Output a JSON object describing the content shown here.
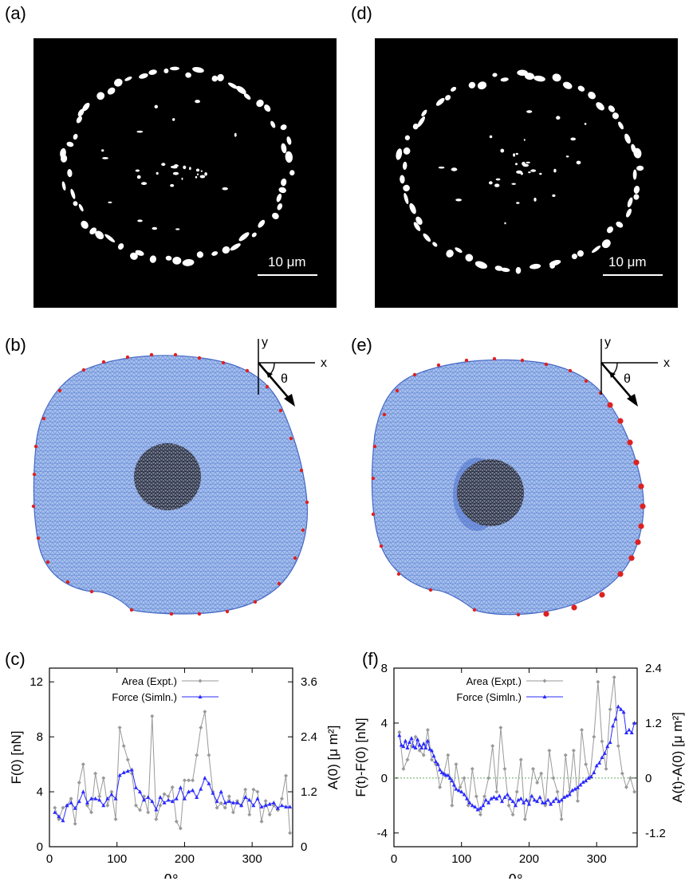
{
  "panels": {
    "a": {
      "label": "(a)",
      "scale_bar": "10 μm"
    },
    "b": {
      "label": "(b)",
      "axes": {
        "x": "x",
        "y": "y",
        "angle": "θ"
      }
    },
    "c": {
      "label": "(c)"
    },
    "d": {
      "label": "(d)",
      "scale_bar": "10 μm"
    },
    "e": {
      "label": "(e)",
      "axes": {
        "x": "x",
        "y": "y",
        "angle": "θ"
      }
    },
    "f": {
      "label": "(f)"
    }
  },
  "colors": {
    "area": "#999999",
    "force": "#2b2bff",
    "mesh": "#6f93d9",
    "nucleus": "#3a3f55",
    "adhesion": "#dd2222"
  },
  "chart_data": [
    {
      "type": "line",
      "panel": "c",
      "xlabel": "θ°",
      "ylabel_left": "F(0) [nN]",
      "ylabel_right": "A(0) [μ m²]",
      "xlim": [
        0,
        360
      ],
      "ylim_left": [
        0,
        13
      ],
      "ylim_right": [
        0,
        3.9
      ],
      "xticks": [
        0,
        100,
        200,
        300
      ],
      "yticks_left": [
        0,
        4,
        8,
        12
      ],
      "yticks_right": [
        0,
        1.2,
        2.4,
        3.6
      ],
      "yticks_right_labels": [
        "0",
        "1.2",
        "2.4",
        "3.6"
      ],
      "legend": "top-left",
      "series": [
        {
          "name": "Area (Expt.)",
          "axis": "right",
          "marker": "diamond",
          "x": [
            8,
            14,
            20,
            26,
            32,
            38,
            44,
            50,
            56,
            62,
            68,
            74,
            80,
            86,
            92,
            98,
            104,
            110,
            116,
            122,
            128,
            134,
            140,
            146,
            152,
            158,
            164,
            170,
            176,
            182,
            188,
            194,
            200,
            206,
            212,
            218,
            224,
            230,
            236,
            242,
            248,
            254,
            260,
            266,
            272,
            278,
            284,
            290,
            296,
            302,
            308,
            314,
            320,
            326,
            332,
            338,
            344,
            350,
            356
          ],
          "values": [
            0.85,
            0.6,
            0.85,
            0.9,
            1.05,
            0.5,
            1.4,
            1.8,
            0.9,
            0.75,
            1.6,
            1.1,
            1.5,
            0.9,
            1.2,
            0.6,
            2.6,
            2.2,
            1.9,
            1.6,
            0.9,
            0.8,
            1.1,
            0.75,
            2.85,
            0.6,
            0.9,
            1.15,
            1.1,
            1.3,
            0.55,
            0.4,
            1.45,
            1.45,
            1.45,
            2.0,
            2.6,
            2.95,
            2.0,
            1.2,
            0.85,
            0.95,
            0.85,
            1.1,
            0.75,
            1.0,
            0.9,
            1.25,
            0.7,
            1.25,
            1.2,
            0.55,
            1.0,
            0.7,
            0.9,
            0.8,
            1.05,
            1.55,
            0.3
          ]
        },
        {
          "name": "Force (Simln.)",
          "axis": "left",
          "marker": "triangle",
          "x": [
            8,
            14,
            20,
            26,
            32,
            38,
            44,
            50,
            56,
            62,
            68,
            74,
            80,
            86,
            92,
            98,
            104,
            110,
            116,
            122,
            128,
            134,
            140,
            146,
            152,
            158,
            164,
            170,
            176,
            182,
            188,
            194,
            200,
            206,
            212,
            218,
            224,
            230,
            236,
            242,
            248,
            254,
            260,
            266,
            272,
            278,
            284,
            290,
            296,
            302,
            308,
            314,
            320,
            326,
            332,
            338,
            344,
            350,
            356
          ],
          "values": [
            2.5,
            2.2,
            1.9,
            3.0,
            3.2,
            2.8,
            3.3,
            4.0,
            3.2,
            3.5,
            3.5,
            3.4,
            3.0,
            3.5,
            3.8,
            3.5,
            5.2,
            5.4,
            5.5,
            5.6,
            4.3,
            4.0,
            3.4,
            3.6,
            3.3,
            2.7,
            3.6,
            3.2,
            3.4,
            3.3,
            3.5,
            4.3,
            3.5,
            4.0,
            4.1,
            3.6,
            4.2,
            5.0,
            4.6,
            3.9,
            3.3,
            4.0,
            3.2,
            3.3,
            3.2,
            3.2,
            3.0,
            3.6,
            3.4,
            3.0,
            3.5,
            2.9,
            3.0,
            3.1,
            3.2,
            2.8,
            3.0,
            2.9,
            2.9
          ]
        }
      ]
    },
    {
      "type": "line",
      "panel": "f",
      "xlabel": "θ°",
      "ylabel_left": "F(t)-F(0) [nN]",
      "ylabel_right": "A(t)-A(0) [μ m²]",
      "xlim": [
        0,
        360
      ],
      "ylim_left": [
        -5,
        8
      ],
      "ylim_right": [
        -1.5,
        2.4
      ],
      "xticks": [
        0,
        100,
        200,
        300
      ],
      "yticks_left": [
        -4,
        0,
        4,
        8
      ],
      "yticks_right": [
        -1.2,
        0,
        1.2,
        2.4
      ],
      "yticks_right_labels": [
        "-1.2",
        "0",
        "1.2",
        "2.4"
      ],
      "zero_line": true,
      "legend": "top-left",
      "series": [
        {
          "name": "Area (Expt.)",
          "axis": "right",
          "marker": "diamond",
          "x": [
            8,
            14,
            20,
            26,
            32,
            38,
            44,
            50,
            56,
            62,
            68,
            74,
            80,
            86,
            92,
            98,
            104,
            110,
            116,
            122,
            128,
            134,
            140,
            146,
            152,
            158,
            164,
            170,
            176,
            182,
            188,
            194,
            200,
            206,
            212,
            218,
            224,
            230,
            236,
            242,
            248,
            254,
            260,
            266,
            272,
            278,
            284,
            290,
            296,
            302,
            308,
            314,
            320,
            326,
            332,
            338,
            344,
            350,
            356
          ],
          "values": [
            1.0,
            0.2,
            0.4,
            0.7,
            0.9,
            0.6,
            0.5,
            1.05,
            0.4,
            0.3,
            -0.2,
            0.1,
            0.5,
            -0.6,
            0.3,
            -0.2,
            0.0,
            -0.6,
            0.2,
            -0.4,
            -0.8,
            -0.4,
            0.0,
            0.7,
            -0.3,
            1.1,
            0.2,
            -0.6,
            -0.8,
            -0.3,
            0.4,
            -0.9,
            -0.5,
            0.2,
            -0.1,
            0.1,
            -0.6,
            0.6,
            0.0,
            -0.3,
            -0.9,
            0.5,
            -0.3,
            0.6,
            -0.5,
            1.05,
            0.3,
            0.0,
            0.9,
            2.1,
            0.8,
            0.2,
            1.5,
            2.2,
            0.7,
            0.1,
            -0.2,
            0.0,
            -0.3
          ]
        },
        {
          "name": "Force (Simln.)",
          "axis": "left",
          "marker": "triangle",
          "x": [
            8,
            11,
            14,
            17,
            20,
            23,
            26,
            29,
            32,
            35,
            38,
            41,
            44,
            47,
            50,
            53,
            56,
            59,
            62,
            65,
            68,
            71,
            74,
            77,
            80,
            83,
            86,
            89,
            92,
            96,
            100,
            104,
            108,
            112,
            116,
            120,
            124,
            128,
            132,
            136,
            140,
            144,
            148,
            152,
            156,
            160,
            164,
            168,
            172,
            176,
            180,
            184,
            188,
            192,
            196,
            200,
            204,
            208,
            212,
            216,
            220,
            224,
            228,
            232,
            236,
            240,
            244,
            248,
            252,
            256,
            260,
            264,
            268,
            272,
            276,
            280,
            284,
            288,
            292,
            296,
            300,
            304,
            308,
            312,
            316,
            320,
            324,
            328,
            332,
            336,
            340,
            344,
            348,
            352,
            356
          ],
          "values": [
            3.1,
            2.4,
            2.3,
            2.7,
            2.2,
            2.6,
            2.9,
            2.3,
            2.2,
            2.8,
            2.4,
            2.2,
            2.5,
            2.2,
            2.7,
            2.1,
            2.0,
            1.6,
            1.2,
            1.0,
            0.6,
            0.4,
            0.3,
            0.2,
            0.2,
            0.0,
            -0.2,
            -0.5,
            -0.8,
            -0.9,
            -1.0,
            -1.2,
            -1.5,
            -1.8,
            -2.0,
            -2.1,
            -2.3,
            -2.2,
            -2.0,
            -1.6,
            -1.8,
            -1.5,
            -1.4,
            -1.5,
            -1.3,
            -1.7,
            -1.4,
            -1.2,
            -1.5,
            -1.7,
            -2.0,
            -1.6,
            -1.5,
            -1.8,
            -1.6,
            -1.9,
            -1.3,
            -1.6,
            -1.7,
            -1.4,
            -1.8,
            -1.8,
            -1.6,
            -1.9,
            -1.7,
            -1.5,
            -1.7,
            -1.6,
            -1.4,
            -1.3,
            -1.2,
            -0.9,
            -0.8,
            -0.7,
            -0.5,
            -0.3,
            -0.2,
            0.0,
            0.1,
            0.4,
            0.9,
            1.1,
            1.5,
            1.8,
            2.3,
            2.6,
            3.8,
            4.3,
            5.2,
            5.0,
            4.8,
            3.3,
            3.5,
            3.3,
            4.0
          ]
        }
      ]
    }
  ]
}
